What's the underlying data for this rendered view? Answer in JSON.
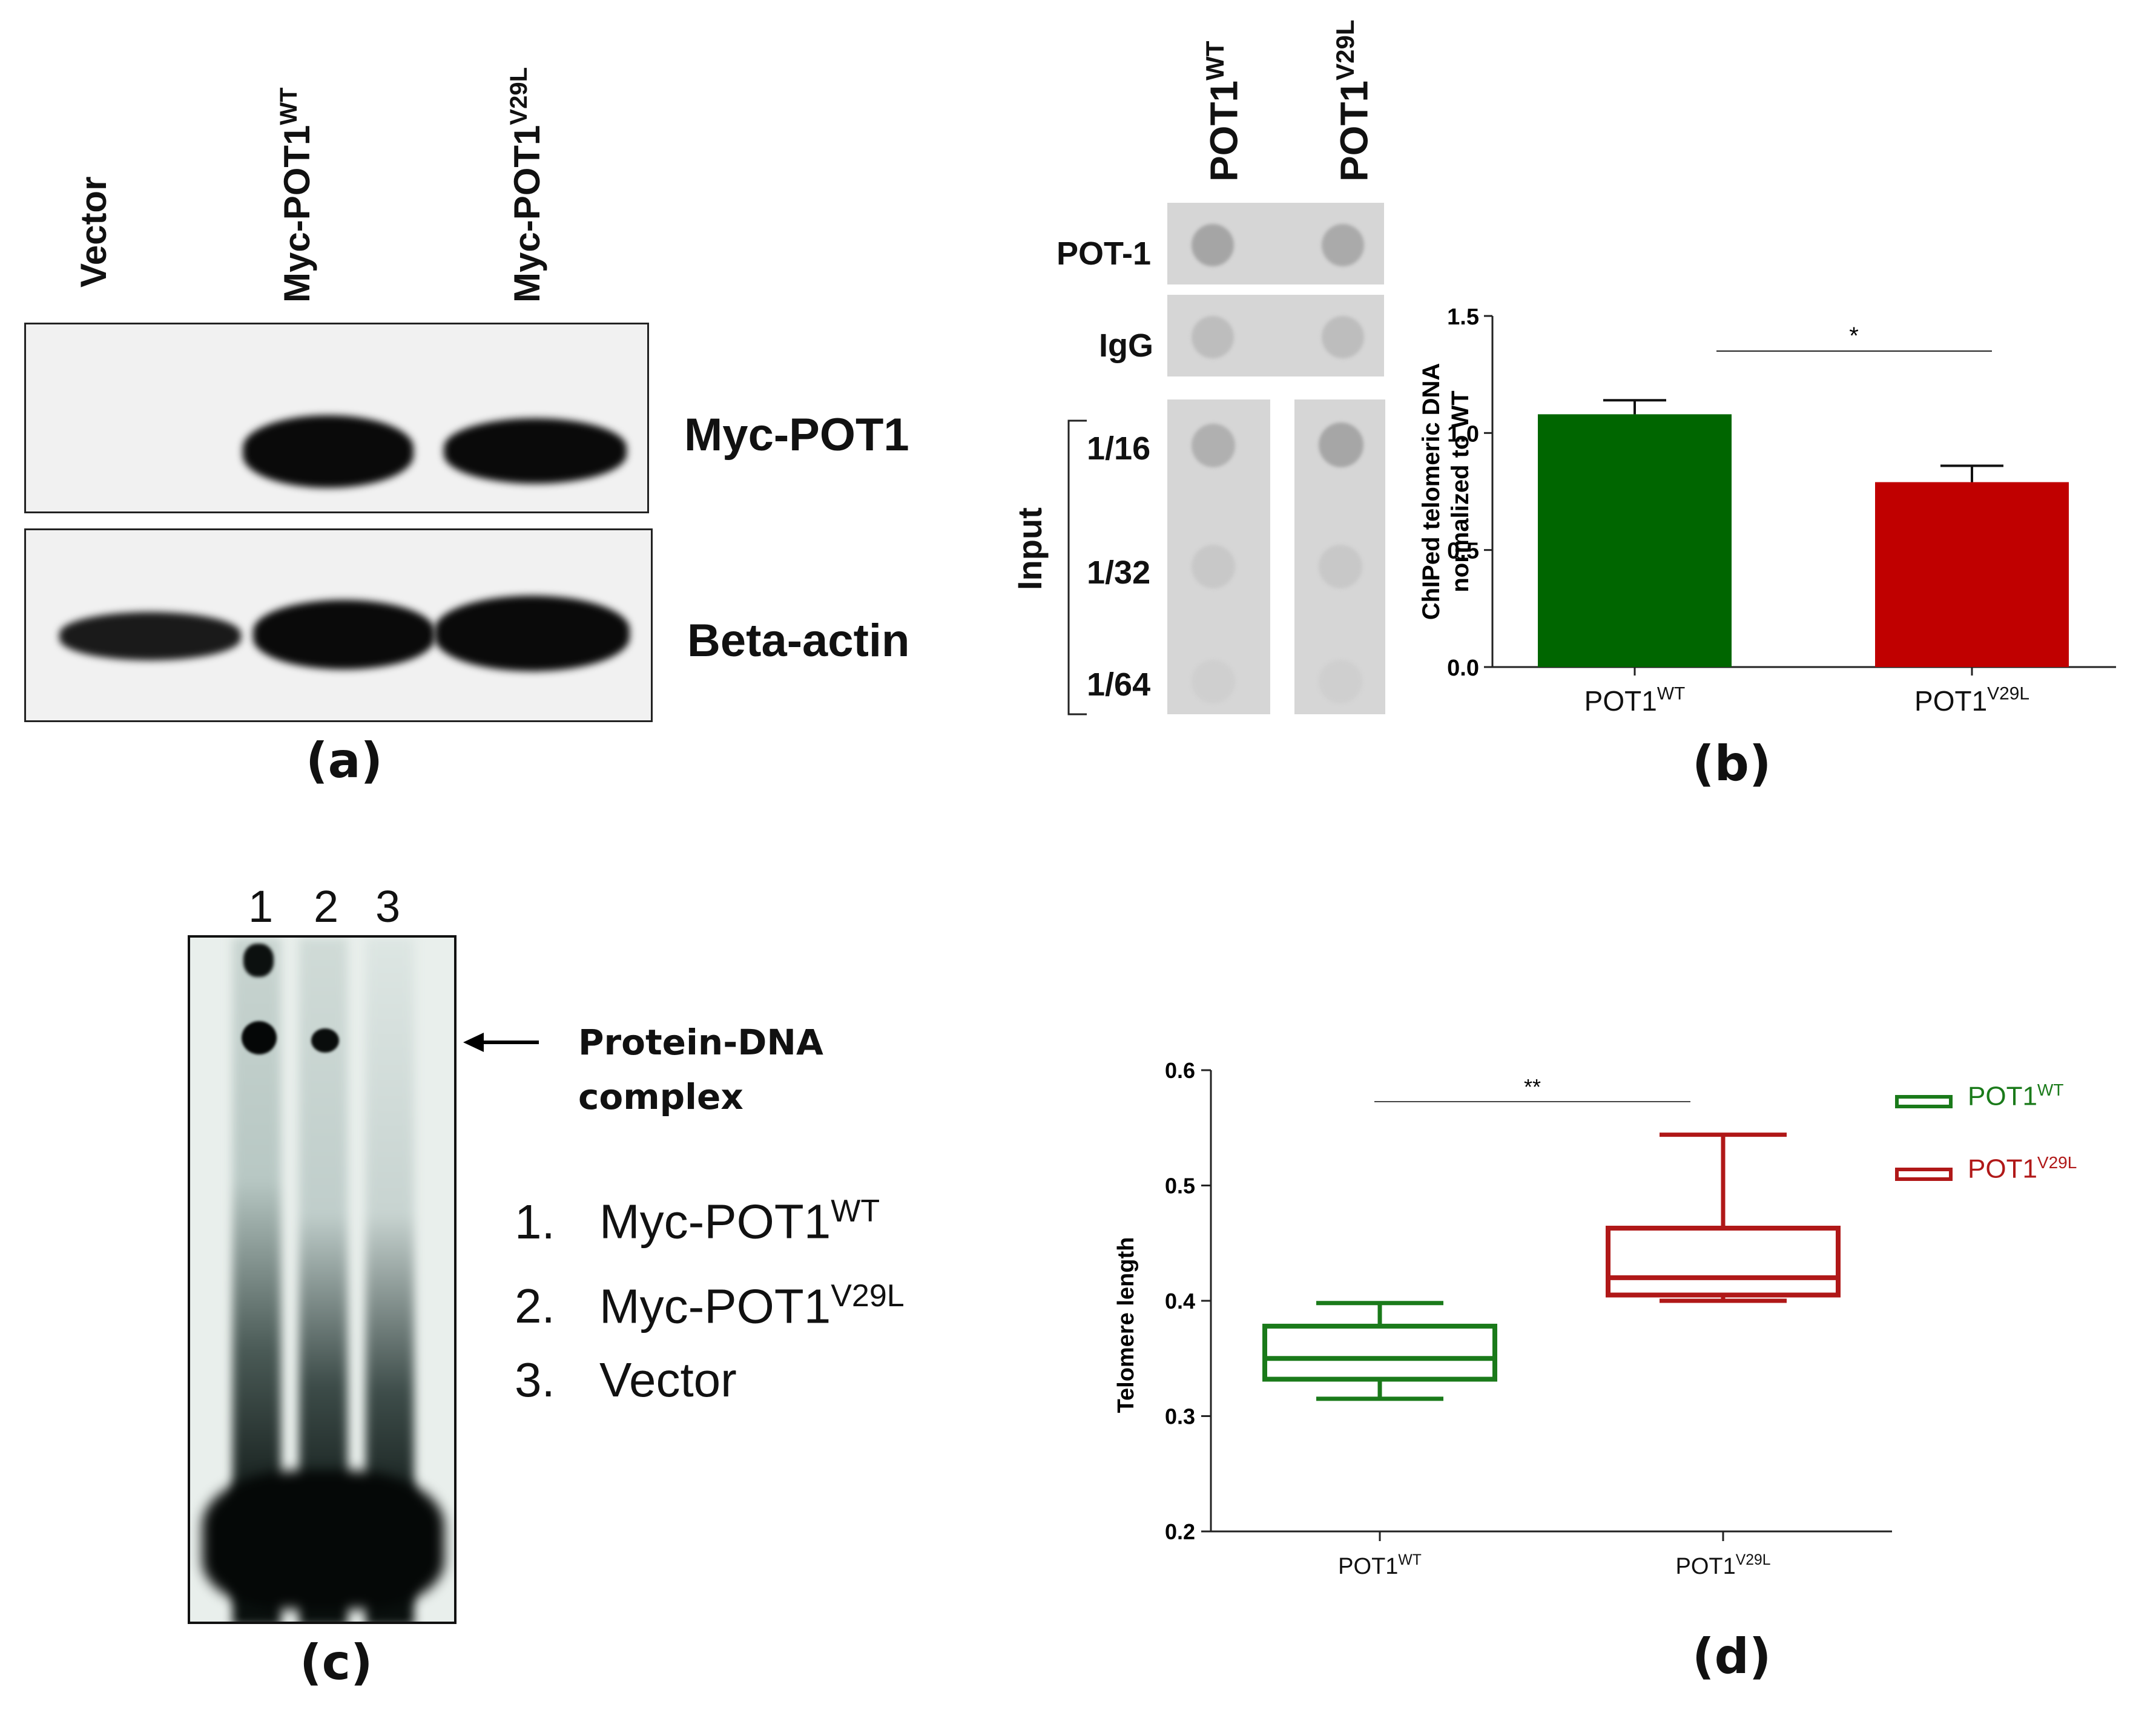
{
  "panel_a": {
    "lanes": [
      "Vector",
      "Myc-POT1",
      "Myc-POT1"
    ],
    "lane_sup": [
      "",
      "WT",
      "V29L"
    ],
    "blot_labels": [
      "Myc-POT1",
      "Beta-actin"
    ],
    "panel_label": "(a)"
  },
  "panel_b": {
    "columns": [
      "POT1",
      "POT1"
    ],
    "column_sup": [
      "WT",
      "V29L"
    ],
    "rows": [
      "POT-1",
      "IgG"
    ],
    "input_label": "Input",
    "dilutions": [
      "1/16",
      "1/32",
      "1/64"
    ],
    "panel_label": "(b)",
    "significance": "*"
  },
  "panel_c": {
    "lanes": [
      "1",
      "2",
      "3"
    ],
    "arrow_label_1": "Protein-DNA",
    "arrow_label_2": "complex",
    "legend": [
      {
        "num": "1.",
        "text": "Myc-POT1",
        "sup": "WT"
      },
      {
        "num": "2.",
        "text": "Myc-POT1",
        "sup": "V29L"
      },
      {
        "num": "3.",
        "text": "Vector",
        "sup": ""
      }
    ],
    "panel_label": "(c)"
  },
  "panel_d": {
    "panel_label": "(d)",
    "significance": "**",
    "legend": [
      {
        "name": "POT1",
        "sup": "WT",
        "color": "#1a7a1a"
      },
      {
        "name": "POT1",
        "sup": "V29L",
        "color": "#b01818"
      }
    ]
  },
  "chart_data": [
    {
      "type": "bar",
      "categories": [
        "POT1WT",
        "POT1V29L"
      ],
      "category_base": [
        "POT1",
        "POT1"
      ],
      "category_sup": [
        "WT",
        "V29L"
      ],
      "values": [
        1.08,
        0.79
      ],
      "errors": [
        0.06,
        0.07
      ],
      "colors": [
        "#006600",
        "#c00000"
      ],
      "ylabel_line1": "ChIPed telomeric DNA",
      "ylabel_line2": "normalized to WT",
      "ylim": [
        0,
        1.5
      ],
      "yticks": [
        "0.0",
        "0.5",
        "1.0",
        "1.5"
      ],
      "ytick_values": [
        0,
        0.5,
        1.0,
        1.5
      ]
    },
    {
      "type": "box",
      "categories": [
        "POT1WT",
        "POT1V29L"
      ],
      "category_base": [
        "POT1",
        "POT1"
      ],
      "category_sup": [
        "WT",
        "V29L"
      ],
      "boxes": [
        {
          "min": 0.315,
          "q1": 0.332,
          "median": 0.35,
          "q3": 0.378,
          "max": 0.398,
          "color": "#1a7a1a"
        },
        {
          "min": 0.4,
          "q1": 0.405,
          "median": 0.42,
          "q3": 0.463,
          "max": 0.544,
          "color": "#b01818"
        }
      ],
      "ylabel": "Telomere length",
      "ylim": [
        0.2,
        0.6
      ],
      "yticks": [
        "0.2",
        "0.3",
        "0.4",
        "0.5",
        "0.6"
      ],
      "ytick_values": [
        0.2,
        0.3,
        0.4,
        0.5,
        0.6
      ]
    }
  ]
}
